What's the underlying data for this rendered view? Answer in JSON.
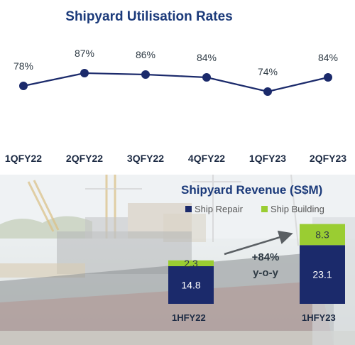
{
  "chart_data": [
    {
      "type": "line",
      "title": "Shipyard Utilisation Rates",
      "categories": [
        "1QFY22",
        "2QFY22",
        "3QFY22",
        "4QFY22",
        "1QFY23",
        "2QFY23"
      ],
      "series": [
        {
          "values": [
            78,
            87,
            86,
            84,
            74,
            84
          ]
        }
      ],
      "data_labels": [
        "78%",
        "87%",
        "86%",
        "84%",
        "74%",
        "84%"
      ],
      "unit": "%",
      "ylim": [
        60,
        100
      ],
      "grid": false,
      "colors": {
        "line": "#1b2a6b",
        "title": "#1b3a7a"
      }
    },
    {
      "type": "bar",
      "stacked": true,
      "title": "Shipyard Revenue (S$M)",
      "categories": [
        "1HFY22",
        "1HFY23"
      ],
      "series": [
        {
          "name": "Ship Repair",
          "values": [
            14.8,
            23.1
          ],
          "color": "#1b2a6b"
        },
        {
          "name": "Ship Building",
          "values": [
            2.3,
            8.3
          ],
          "color": "#9acd32"
        }
      ],
      "legend": "top",
      "annotation": {
        "line1": "+84%",
        "line2": "y-o-y"
      },
      "ylim": [
        0,
        35
      ],
      "grid": false
    }
  ]
}
